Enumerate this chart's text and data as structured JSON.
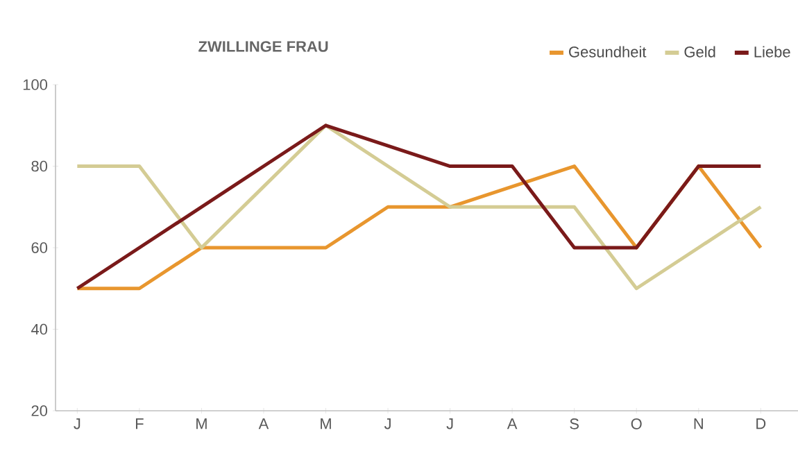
{
  "chart_data": {
    "type": "line",
    "title": "ZWILLINGE FRAU",
    "categories": [
      "J",
      "F",
      "M",
      "A",
      "M",
      "J",
      "J",
      "A",
      "S",
      "O",
      "N",
      "D"
    ],
    "series": [
      {
        "name": "Gesundheit",
        "color": "#e8962e",
        "values": [
          50,
          50,
          60,
          60,
          60,
          70,
          70,
          75,
          80,
          60,
          80,
          60
        ]
      },
      {
        "name": "Geld",
        "color": "#d4cc94",
        "values": [
          80,
          80,
          60,
          75,
          90,
          80,
          70,
          70,
          70,
          50,
          60,
          70
        ]
      },
      {
        "name": "Liebe",
        "color": "#7a1a1a",
        "values": [
          50,
          60,
          70,
          80,
          90,
          85,
          80,
          80,
          60,
          60,
          80,
          80
        ]
      }
    ],
    "ylim": [
      20,
      100
    ],
    "yticks": [
      20,
      40,
      60,
      80,
      100
    ],
    "legend": "top right"
  }
}
